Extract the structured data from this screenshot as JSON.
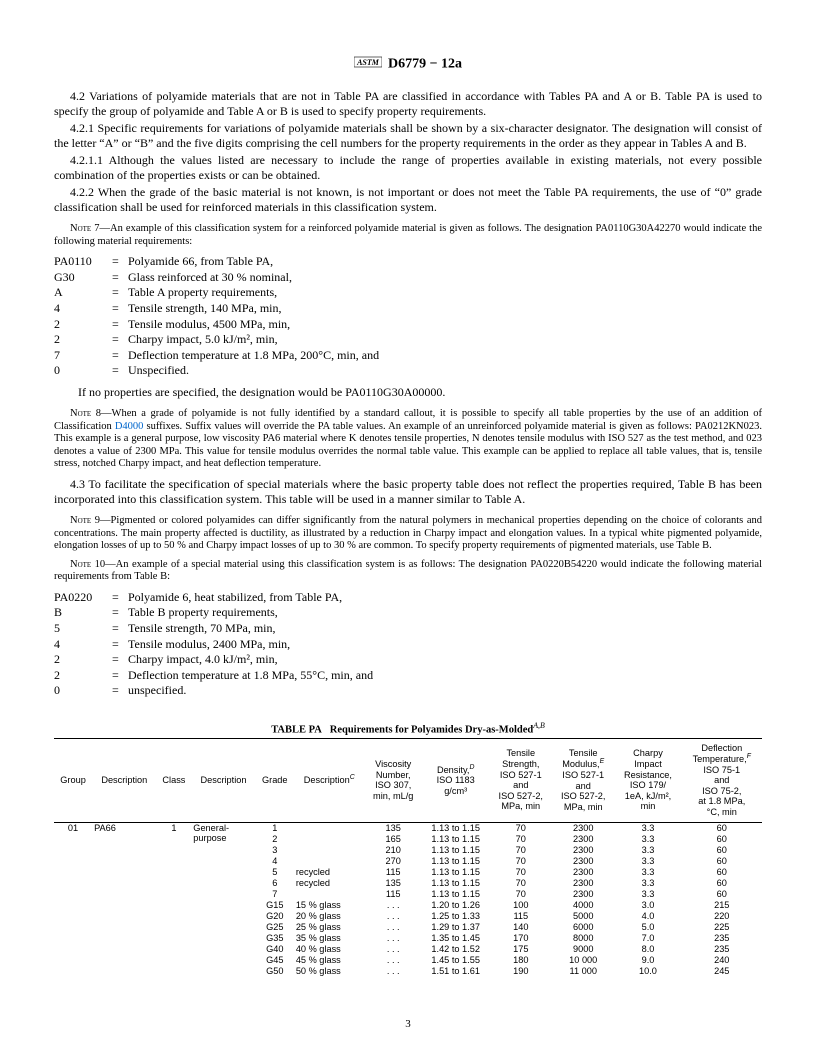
{
  "header": {
    "designation": "D6779 − 12a"
  },
  "paras": {
    "p42": "4.2 Variations of polyamide materials that are not in Table PA are classified in accordance with Tables PA and A or B. Table PA is used to specify the group of polyamide and Table A or B is used to specify property requirements.",
    "p421": "4.2.1 Specific requirements for variations of polyamide materials shall be shown by a six-character designator. The designation will consist of the letter “A” or “B” and the five digits comprising the cell numbers for the property requirements in the order as they appear in Tables A and B.",
    "p4211": "4.2.1.1 Although the values listed are necessary to include the range of properties available in existing materials, not every possible combination of the properties exists or can be obtained.",
    "p422": "4.2.2 When the grade of the basic material is not known, is not important or does not meet the Table PA requirements, the use of “0” grade classification shall be used for reinforced materials in this classification system.",
    "p43": "4.3 To facilitate the specification of special materials where the basic property table does not reflect the properties required, Table B has been incorporated into this classification system. This table will be used in a manner similar to Table A."
  },
  "notes": {
    "n7": "7—An example of this classification system for a reinforced polyamide material is given as follows. The designation PA0110G30A42270 would indicate the following material requirements:",
    "n8a": "8—When a grade of polyamide is not fully identified by a standard callout, it is possible to specify all table properties by the use of an addition of Classification ",
    "n8link": "D4000",
    "n8b": " suffixes. Suffix values will override the PA table values. An example of an unreinforced polyamide material is given as follows: PA0212KN023. This example is a general purpose, low viscosity PA6 material where K denotes tensile properties, N denotes tensile modulus with ISO 527 as the test method, and 023 denotes a value of 2300 MPa. This value for tensile modulus overrides the normal table value. This example can be applied to replace all table values, that is, tensile stress, notched Charpy impact, and heat deflection temperature.",
    "n9": "9—Pigmented or colored polyamides can differ significantly from the natural polymers in mechanical properties depending on the choice of colorants and concentrations. The main property affected is ductility, as illustrated by a reduction in Charpy impact and elongation values. In a typical white pigmented polyamide, elongation losses of up to 50 % and Charpy impact losses of up to 30 % are common. To specify property requirements of pigmented materials, use Table B.",
    "n10": "10—An example of a special material using this classification system is as follows: The designation PA0220B54220 would indicate the following material requirements from Table B:"
  },
  "defs1": [
    {
      "k": "PA0110",
      "v": "Polyamide 66, from Table PA,"
    },
    {
      "k": "G30",
      "v": "Glass reinforced at 30 % nominal,"
    },
    {
      "k": "A",
      "v": "Table A property requirements,"
    },
    {
      "k": "4",
      "v": "Tensile strength, 140 MPa, min,"
    },
    {
      "k": "2",
      "v": "Tensile modulus, 4500 MPa, min,"
    },
    {
      "k": "2",
      "v": "Charpy impact, 5.0 kJ/m², min,"
    },
    {
      "k": "7",
      "v": "Deflection temperature at 1.8 MPa, 200°C, min, and"
    },
    {
      "k": "0",
      "v": "Unspecified."
    }
  ],
  "defs1_after": "If no properties are specified, the designation would be PA0110G30A00000.",
  "defs2": [
    {
      "k": "PA0220",
      "v": "Polyamide 6, heat stabilized, from Table PA,"
    },
    {
      "k": "B",
      "v": "Table B property requirements,"
    },
    {
      "k": "5",
      "v": "Tensile strength, 70 MPa, min,"
    },
    {
      "k": "4",
      "v": "Tensile modulus, 2400 MPa, min,"
    },
    {
      "k": "2",
      "v": "Charpy impact, 4.0 kJ/m², min,"
    },
    {
      "k": "2",
      "v": "Deflection temperature at 1.8 MPa, 55°C, min, and"
    },
    {
      "k": "0",
      "v": "unspecified."
    }
  ],
  "table": {
    "title_label": "TABLE PA",
    "title_text": "Requirements for Polyamides Dry-as-Molded",
    "title_sup": "A,B",
    "headers": {
      "group": "Group",
      "desc": "Description",
      "class": "Class",
      "desc2": "Description",
      "grade": "Grade",
      "desc3": "Description",
      "desc3_sup": "C",
      "visc": "Viscosity\nNumber,\nISO 307,\nmin, mL/g",
      "dens": "Density,\nISO 1183\ng/cm³",
      "dens_sup": "D",
      "ts": "Tensile\nStrength,\nISO 527-1\nand\nISO 527-2,\nMPa, min",
      "tm": "Tensile\nModulus,\nISO 527-1\nand\nISO 527-2,\nMPa, min",
      "tm_sup": "E",
      "ci": "Charpy\nImpact\nResistance,\nISO 179/\n1eA, kJ/m²,\nmin",
      "dt": "Deflection\nTemperature,\nISO 75-1\nand\nISO 75-2,\nat 1.8 MPa,\n°C, min",
      "dt_sup": "F"
    },
    "group": "01",
    "group_desc": "PA66",
    "class": "1",
    "class_desc": "General-\npurpose",
    "rows": [
      {
        "grade": "1",
        "gdesc": "",
        "visc": "135",
        "dens": "1.13 to 1.15",
        "ts": "70",
        "tm": "2300",
        "ci": "3.3",
        "dt": "60"
      },
      {
        "grade": "2",
        "gdesc": "",
        "visc": "165",
        "dens": "1.13 to 1.15",
        "ts": "70",
        "tm": "2300",
        "ci": "3.3",
        "dt": "60"
      },
      {
        "grade": "3",
        "gdesc": "",
        "visc": "210",
        "dens": "1.13 to 1.15",
        "ts": "70",
        "tm": "2300",
        "ci": "3.3",
        "dt": "60"
      },
      {
        "grade": "4",
        "gdesc": "",
        "visc": "270",
        "dens": "1.13 to 1.15",
        "ts": "70",
        "tm": "2300",
        "ci": "3.3",
        "dt": "60"
      },
      {
        "grade": "5",
        "gdesc": "recycled",
        "visc": "115",
        "dens": "1.13 to 1.15",
        "ts": "70",
        "tm": "2300",
        "ci": "3.3",
        "dt": "60"
      },
      {
        "grade": "6",
        "gdesc": "recycled",
        "visc": "135",
        "dens": "1.13 to 1.15",
        "ts": "70",
        "tm": "2300",
        "ci": "3.3",
        "dt": "60"
      },
      {
        "grade": "7",
        "gdesc": "",
        "visc": "115",
        "dens": "1.13 to 1.15",
        "ts": "70",
        "tm": "2300",
        "ci": "3.3",
        "dt": "60"
      },
      {
        "grade": "G15",
        "gdesc": "15 % glass",
        "visc": ". . .",
        "dens": "1.20 to 1.26",
        "ts": "100",
        "tm": "4000",
        "ci": "3.0",
        "dt": "215"
      },
      {
        "grade": "G20",
        "gdesc": "20 % glass",
        "visc": ". . .",
        "dens": "1.25 to 1.33",
        "ts": "115",
        "tm": "5000",
        "ci": "4.0",
        "dt": "220"
      },
      {
        "grade": "G25",
        "gdesc": "25 % glass",
        "visc": ". . .",
        "dens": "1.29 to 1.37",
        "ts": "140",
        "tm": "6000",
        "ci": "5.0",
        "dt": "225"
      },
      {
        "grade": "G35",
        "gdesc": "35 % glass",
        "visc": ". . .",
        "dens": "1.35 to 1.45",
        "ts": "170",
        "tm": "8000",
        "ci": "7.0",
        "dt": "235"
      },
      {
        "grade": "G40",
        "gdesc": "40 % glass",
        "visc": ". . .",
        "dens": "1.42 to 1.52",
        "ts": "175",
        "tm": "9000",
        "ci": "8.0",
        "dt": "235"
      },
      {
        "grade": "G45",
        "gdesc": "45 % glass",
        "visc": ". . .",
        "dens": "1.45 to 1.55",
        "ts": "180",
        "tm": "10 000",
        "ci": "9.0",
        "dt": "240"
      },
      {
        "grade": "G50",
        "gdesc": "50 % glass",
        "visc": ". . .",
        "dens": "1.51 to 1.61",
        "ts": "190",
        "tm": "11 000",
        "ci": "10.0",
        "dt": "245"
      }
    ]
  },
  "page_number": "3"
}
